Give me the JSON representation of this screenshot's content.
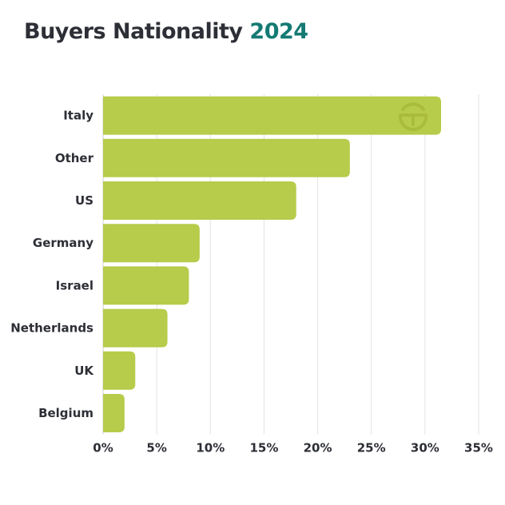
{
  "header": {
    "title_main": "Buyers Nationality",
    "title_year": "2024"
  },
  "colors": {
    "bar": "#b6cc4a",
    "title": "#2d2f36",
    "year": "#147a73",
    "grid": "#e3e3e3",
    "text": "#2d2f36"
  },
  "logo": {
    "icon": "brand-logo-icon"
  },
  "chart_data": {
    "type": "bar",
    "orientation": "horizontal",
    "title": "Buyers Nationality 2024",
    "xlabel": "",
    "ylabel": "",
    "categories": [
      "Italy",
      "Other",
      "US",
      "Germany",
      "Israel",
      "Netherlands",
      "UK",
      "Belgium"
    ],
    "values": [
      31.5,
      23,
      18,
      9,
      8,
      6,
      3,
      2
    ],
    "xlim": [
      0,
      35
    ],
    "ticks": [
      0,
      5,
      10,
      15,
      20,
      25,
      30,
      35
    ],
    "tick_labels": [
      "0%",
      "5%",
      "10%",
      "15%",
      "20%",
      "25%",
      "30%",
      "35%"
    ],
    "grid": true,
    "legend": "none"
  }
}
